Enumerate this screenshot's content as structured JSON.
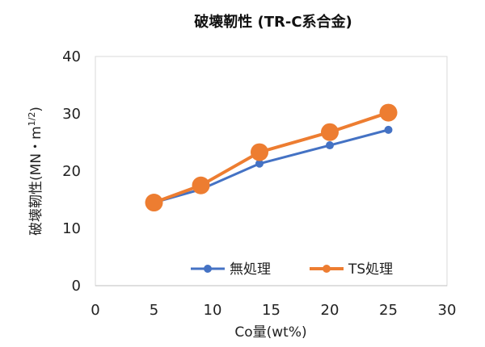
{
  "chart_data": {
    "type": "line",
    "title": "破壊靭性 (TR-C系合金)",
    "xlabel": "Co量(wt%)",
    "ylabel": "破壊靭性(MN・m",
    "ylabel_sup": "1/2",
    "ylabel_close": ")",
    "xlim": [
      0,
      30
    ],
    "ylim": [
      0,
      40
    ],
    "xticks": [
      0,
      5,
      10,
      15,
      20,
      25,
      30
    ],
    "yticks": [
      0,
      10,
      20,
      30,
      40
    ],
    "grid": false,
    "legend_position": "bottom-right",
    "series": [
      {
        "name": "無処理",
        "color": "#4472C4",
        "marker": "small-circle",
        "x": [
          5,
          9,
          14,
          20,
          25
        ],
        "y": [
          14.5,
          16.8,
          21.3,
          24.5,
          27.2
        ]
      },
      {
        "name": "TS処理",
        "color": "#ED7D31",
        "marker": "large-circle",
        "x": [
          5,
          9,
          14,
          20,
          25
        ],
        "y": [
          14.5,
          17.5,
          23.3,
          26.8,
          30.2
        ]
      }
    ]
  }
}
